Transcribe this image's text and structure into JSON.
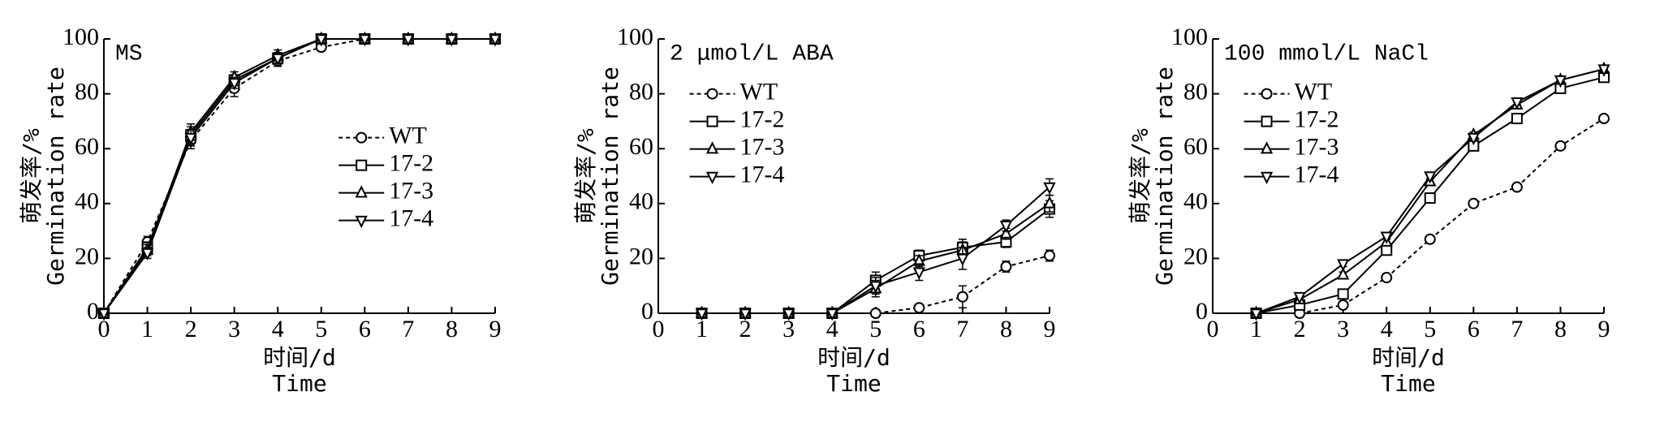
{
  "chart_data": [
    {
      "type": "line",
      "annotation": "MS",
      "xlabel": [
        "时间/d",
        "Time"
      ],
      "ylabel": [
        "萌发率/%",
        "Germination rate"
      ],
      "x": [
        0,
        1,
        2,
        3,
        4,
        5,
        6,
        7,
        8,
        9
      ],
      "xlim": [
        0,
        9
      ],
      "xticks": [
        0,
        1,
        2,
        3,
        4,
        5,
        6,
        7,
        8,
        9
      ],
      "ylim": [
        0,
        100
      ],
      "yticks": [
        0,
        20,
        40,
        60,
        80,
        100
      ],
      "legend": "center right",
      "series": [
        {
          "name": "WT",
          "color": "#000000",
          "marker": "circle",
          "dashed": true,
          "values": [
            0,
            26,
            63,
            82,
            92,
            97,
            100,
            100,
            100,
            100
          ],
          "errors": [
            0,
            2,
            3,
            3,
            2,
            1,
            0,
            0,
            0,
            0
          ]
        },
        {
          "name": "17-2",
          "color": "#000000",
          "marker": "square",
          "dashed": false,
          "values": [
            0,
            24,
            65,
            85,
            93,
            100,
            100,
            100,
            100,
            100
          ],
          "errors": [
            0,
            2,
            3,
            2,
            2,
            0,
            0,
            0,
            0,
            0
          ]
        },
        {
          "name": "17-3",
          "color": "#000000",
          "marker": "triangle-up",
          "dashed": false,
          "values": [
            0,
            23,
            66,
            86,
            94,
            100,
            100,
            100,
            100,
            100
          ],
          "errors": [
            0,
            2,
            3,
            2,
            2,
            0,
            0,
            0,
            0,
            0
          ]
        },
        {
          "name": "17-4",
          "color": "#000000",
          "marker": "triangle-down",
          "dashed": false,
          "values": [
            0,
            22,
            64,
            84,
            93,
            100,
            100,
            100,
            100,
            100
          ],
          "errors": [
            0,
            2,
            3,
            2,
            2,
            0,
            0,
            0,
            0,
            0
          ]
        }
      ]
    },
    {
      "type": "line",
      "annotation": "2 μmol/L ABA",
      "xlabel": [
        "时间/d",
        "Time"
      ],
      "ylabel": [
        "萌发率/%",
        "Germination rate"
      ],
      "x": [
        1,
        2,
        3,
        4,
        5,
        6,
        7,
        8,
        9
      ],
      "xlim": [
        0,
        9
      ],
      "xticks": [
        0,
        1,
        2,
        3,
        4,
        5,
        6,
        7,
        8,
        9
      ],
      "ylim": [
        0,
        100
      ],
      "yticks": [
        0,
        20,
        40,
        60,
        80,
        100
      ],
      "legend": "upper left",
      "series": [
        {
          "name": "WT",
          "color": "#000000",
          "marker": "circle",
          "dashed": true,
          "values": [
            0,
            0,
            0,
            0,
            0,
            2,
            6,
            17,
            21
          ],
          "errors": [
            0,
            0,
            0,
            0,
            0,
            1,
            4,
            2,
            2
          ]
        },
        {
          "name": "17-2",
          "color": "#000000",
          "marker": "square",
          "dashed": false,
          "values": [
            0,
            0,
            0,
            0,
            12,
            21,
            24,
            26,
            38
          ],
          "errors": [
            0,
            0,
            0,
            0,
            3,
            2,
            3,
            2,
            3
          ]
        },
        {
          "name": "17-3",
          "color": "#000000",
          "marker": "triangle-up",
          "dashed": false,
          "values": [
            0,
            0,
            0,
            0,
            9,
            19,
            23,
            29,
            40
          ],
          "errors": [
            0,
            0,
            0,
            0,
            3,
            2,
            3,
            2,
            3
          ]
        },
        {
          "name": "17-4",
          "color": "#000000",
          "marker": "triangle-down",
          "dashed": false,
          "values": [
            0,
            0,
            0,
            0,
            10,
            15,
            20,
            32,
            46
          ],
          "errors": [
            0,
            0,
            0,
            0,
            3,
            3,
            4,
            2,
            3
          ]
        }
      ]
    },
    {
      "type": "line",
      "annotation": "100 mmol/L NaCl",
      "xlabel": [
        "时间/d",
        "Time"
      ],
      "ylabel": [
        "萌发率/%",
        "Germination rate"
      ],
      "x": [
        1,
        2,
        3,
        4,
        5,
        6,
        7,
        8,
        9
      ],
      "xlim": [
        0,
        9
      ],
      "xticks": [
        0,
        1,
        2,
        3,
        4,
        5,
        6,
        7,
        8,
        9
      ],
      "ylim": [
        0,
        100
      ],
      "yticks": [
        0,
        20,
        40,
        60,
        80,
        100
      ],
      "legend": "upper left",
      "series": [
        {
          "name": "WT",
          "color": "#000000",
          "marker": "circle",
          "dashed": true,
          "values": [
            0,
            0,
            3,
            13,
            27,
            40,
            46,
            61,
            71
          ],
          "errors": [
            0,
            0,
            1,
            1,
            1,
            1,
            1,
            1,
            1
          ]
        },
        {
          "name": "17-2",
          "color": "#000000",
          "marker": "square",
          "dashed": false,
          "values": [
            0,
            3,
            7,
            23,
            42,
            61,
            71,
            82,
            86
          ],
          "errors": [
            0,
            1,
            1,
            1,
            1,
            1,
            1,
            1,
            1
          ]
        },
        {
          "name": "17-3",
          "color": "#000000",
          "marker": "triangle-up",
          "dashed": false,
          "values": [
            0,
            5,
            14,
            26,
            48,
            65,
            76,
            85,
            89
          ],
          "errors": [
            0,
            1,
            1,
            1,
            1,
            1,
            1,
            1,
            1
          ]
        },
        {
          "name": "17-4",
          "color": "#000000",
          "marker": "triangle-down",
          "dashed": false,
          "values": [
            0,
            6,
            18,
            28,
            50,
            64,
            77,
            85,
            89
          ],
          "errors": [
            0,
            1,
            1,
            1,
            1,
            1,
            1,
            1,
            1
          ]
        }
      ]
    }
  ]
}
